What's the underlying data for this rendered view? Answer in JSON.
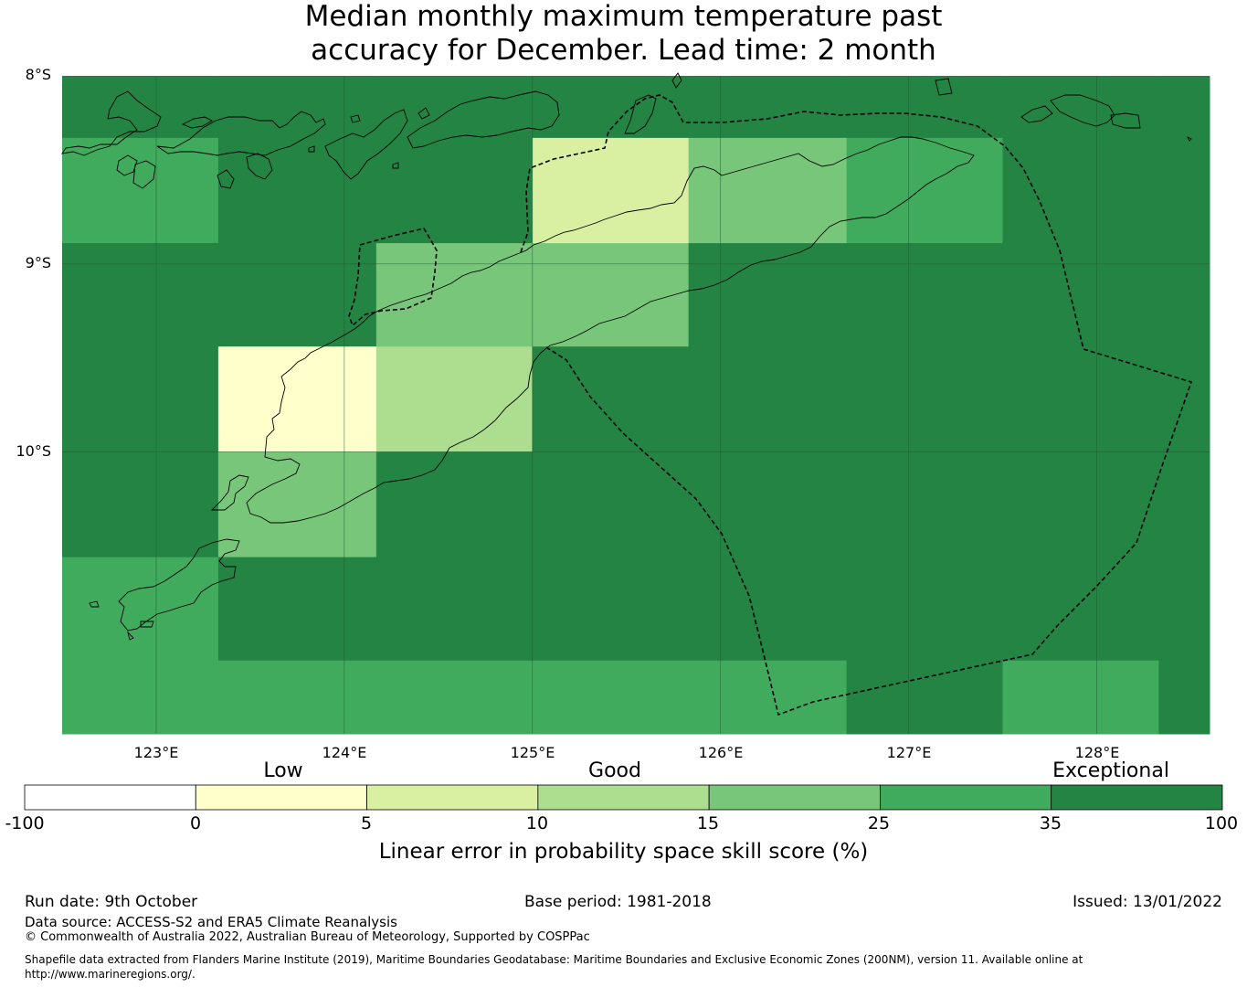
{
  "title_line1": "Median monthly maximum temperature past",
  "title_line2": "accuracy for December. Lead time: 2 month",
  "map": {
    "lat_labels": [
      "8°S",
      "9°S",
      "10°S"
    ],
    "lon_labels": [
      "123°E",
      "124°E",
      "125°E",
      "126°E",
      "127°E",
      "128°E"
    ],
    "lat_range": [
      -11.5,
      -8.0
    ],
    "lon_range": [
      122.5,
      128.6
    ],
    "grid_rows_lat_top": [
      -8.0,
      -8.33,
      -8.89,
      -9.44,
      -10.0,
      -10.56,
      -11.11,
      -11.5
    ],
    "grid_cols_lon_left": [
      122.5,
      123.33,
      124.17,
      125.0,
      125.83,
      126.67,
      127.5,
      128.33,
      128.6
    ],
    "cells": [
      [
        4,
        4,
        4,
        4,
        4,
        4,
        4,
        4
      ],
      [
        3,
        4,
        4,
        0,
        2,
        3,
        4,
        4
      ],
      [
        4,
        4,
        2,
        2,
        4,
        4,
        4,
        4
      ],
      [
        4,
        -1,
        1,
        4,
        4,
        4,
        4,
        4
      ],
      [
        4,
        2,
        4,
        4,
        4,
        4,
        4,
        4
      ],
      [
        3,
        4,
        4,
        4,
        4,
        4,
        4,
        4
      ],
      [
        3,
        3,
        3,
        3,
        3,
        4,
        3,
        4
      ]
    ]
  },
  "colorbar": {
    "categories": [
      "Low",
      "Good",
      "Exceptional"
    ],
    "ticks": [
      "-100",
      "0",
      "5",
      "10",
      "15",
      "25",
      "35",
      "100"
    ],
    "colors": [
      "#ffffff",
      "#ffffcc",
      "#d9f0a3",
      "#addd8e",
      "#78c679",
      "#41ab5d",
      "#238443"
    ],
    "title": "Linear error in probability space skill score (%)"
  },
  "footer": {
    "run_date": "Run date: 9th October",
    "base_period": "Base period: 1981-2018",
    "issued": "Issued: 13/01/2022",
    "data_source": "Data source: ACCESS-S2 and ERA5 Climate Reanalysis",
    "copyright": "© Commonwealth of Australia 2022, Australian Bureau of Meteorology, Supported by COSPPac",
    "shapefile": "Shapefile data extracted from Flanders Marine Institute (2019), Maritime Boundaries Geodatabase: Maritime Boundaries and Exclusive Economic Zones (200NM), version 11. Available online at http://www.marineregions.org/."
  }
}
